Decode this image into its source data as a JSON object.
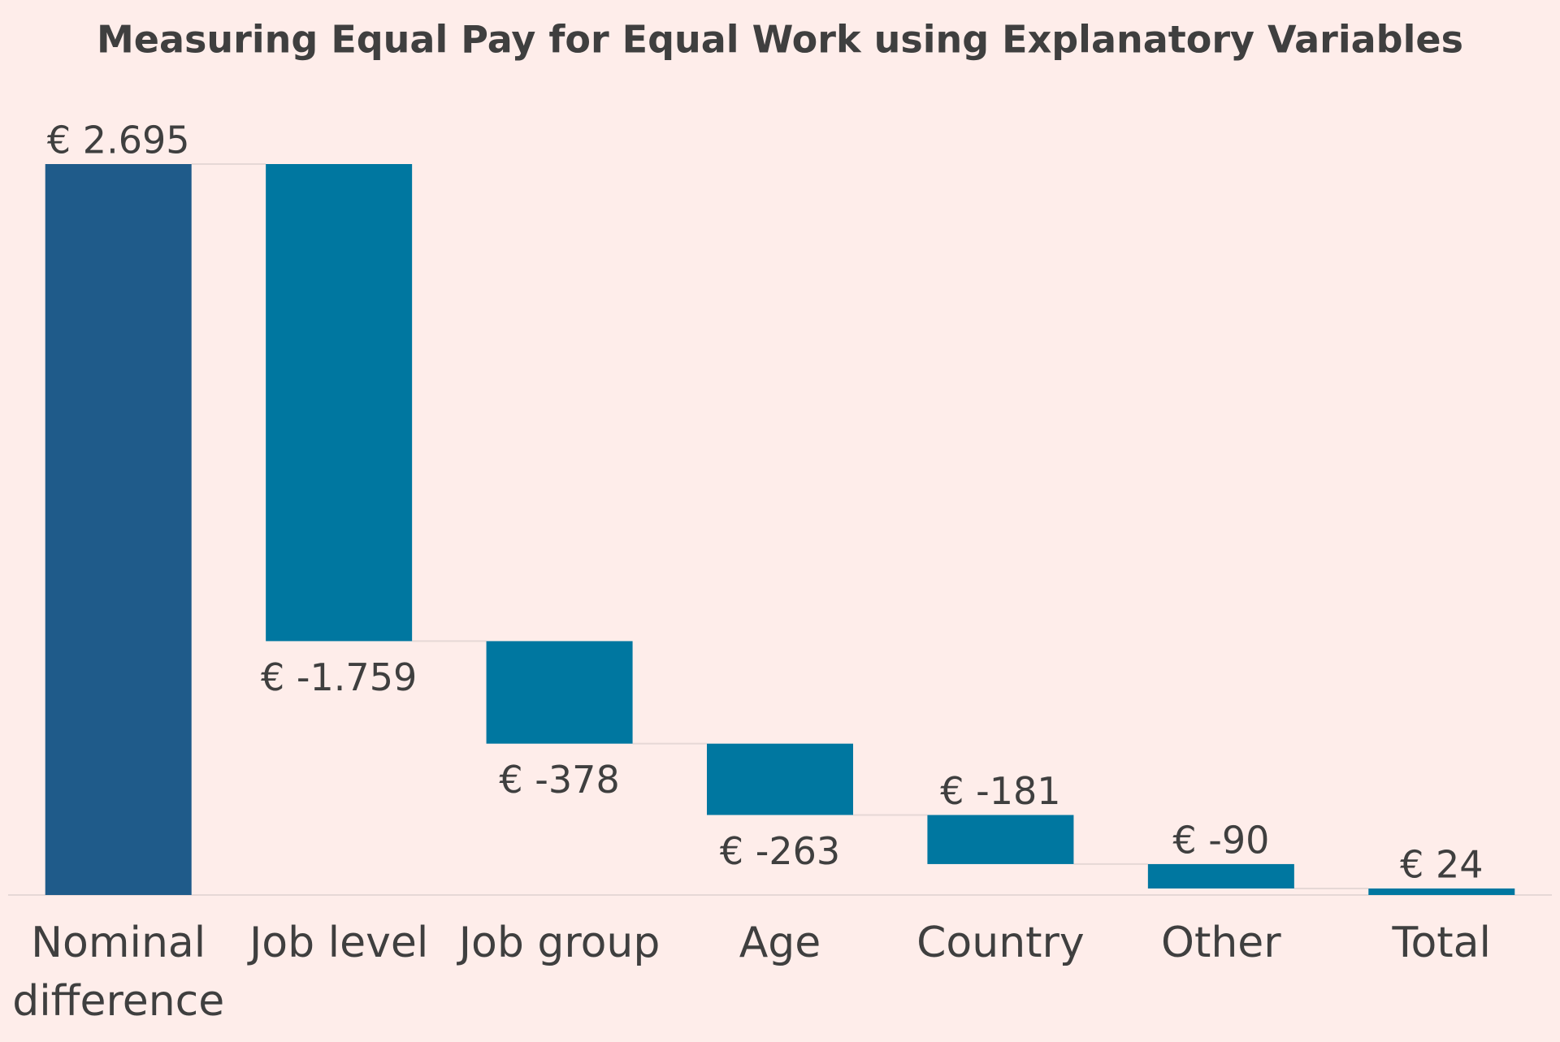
{
  "chart_data": {
    "type": "waterfall",
    "title": "Measuring Equal Pay for Equal Work using Explanatory Variables",
    "categories": [
      "Nominal difference",
      "Job level",
      "Job group",
      "Age",
      "Country",
      "Other",
      "Total"
    ],
    "values": [
      2695,
      -1759,
      -378,
      -263,
      -181,
      -90,
      24
    ],
    "value_labels": [
      "€ 2.695",
      "€ -1.759",
      "€ -378",
      "€ -263",
      "€ -181",
      "€ -90",
      "€ 24"
    ],
    "colors": [
      "#1f5b8a",
      "#0077a0",
      "#0077a0",
      "#0077a0",
      "#0077a0",
      "#0077a0",
      "#0077a0"
    ],
    "label_position": [
      "above",
      "below",
      "below",
      "below",
      "above",
      "above",
      "above"
    ]
  }
}
